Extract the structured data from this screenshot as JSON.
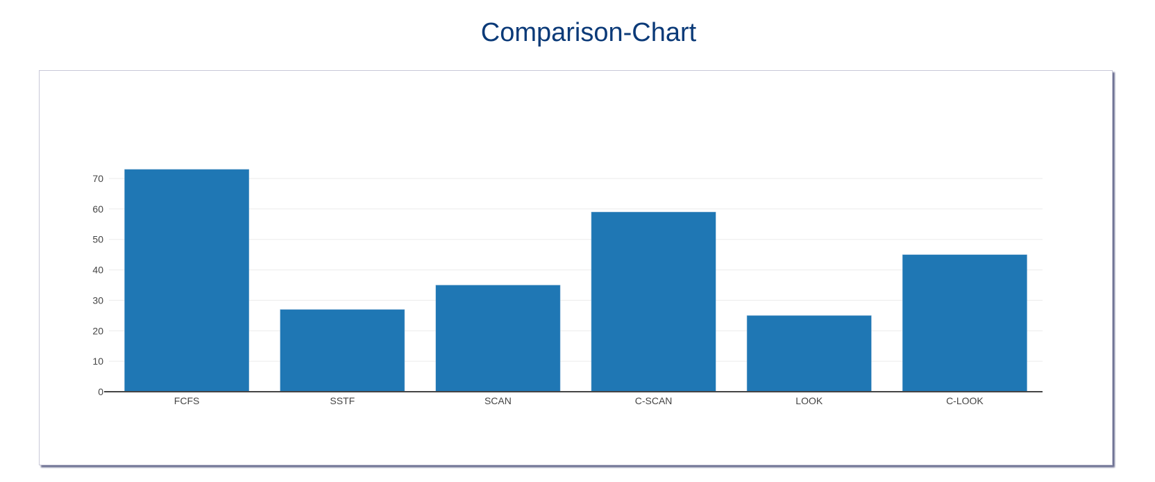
{
  "title": "Comparison-Chart",
  "chart_data": {
    "type": "bar",
    "title": "",
    "categories": [
      "FCFS",
      "SSTF",
      "SCAN",
      "C-SCAN",
      "LOOK",
      "C-LOOK"
    ],
    "values": [
      73,
      27,
      35,
      59,
      25,
      45
    ],
    "xlabel": "",
    "ylabel": "",
    "ylim": [
      0,
      76.8
    ],
    "yticks": [
      0,
      10,
      20,
      30,
      40,
      50,
      60,
      70
    ],
    "grid": true,
    "bar_color": "#1f77b4"
  }
}
